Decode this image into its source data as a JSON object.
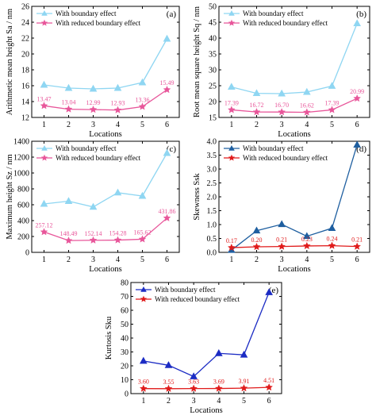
{
  "colors": {
    "with_boundary_light": "#8fd6f2",
    "with_boundary_dark": "#1f5fa0",
    "with_boundary_navy": "#1c2cc4",
    "reduced_pink": "#e8569a",
    "reduced_red": "#e01b1b"
  },
  "chart_data": [
    {
      "panel": "(a)",
      "type": "line",
      "xlabel": "Locations",
      "ylabel": "Arithmetic mean height Sa / nm",
      "x": [
        1,
        2,
        3,
        4,
        5,
        6
      ],
      "xlim": [
        0.5,
        6.5
      ],
      "ylim": [
        12,
        26
      ],
      "yticks": [
        12,
        14,
        16,
        18,
        20,
        22,
        24,
        26
      ],
      "legend_position": "top-left",
      "series": [
        {
          "name": "With boundary effect",
          "values": [
            16.1,
            15.7,
            15.6,
            15.7,
            16.4,
            21.9
          ],
          "color": "#8fd6f2",
          "marker": "triangle"
        },
        {
          "name": "With reduced boundary effect",
          "values": [
            13.47,
            13.04,
            12.99,
            12.93,
            13.36,
            15.49
          ],
          "color": "#e8569a",
          "marker": "star",
          "labels": [
            "13.47",
            "13.04",
            "12.99",
            "12.93",
            "13.36",
            "15.49"
          ]
        }
      ]
    },
    {
      "panel": "(b)",
      "type": "line",
      "xlabel": "Locations",
      "ylabel": "Root mean square height Sq / nm",
      "x": [
        1,
        2,
        3,
        4,
        5,
        6
      ],
      "xlim": [
        0.5,
        6.5
      ],
      "ylim": [
        15,
        50
      ],
      "yticks": [
        15,
        20,
        25,
        30,
        35,
        40,
        45,
        50
      ],
      "legend_position": "top-left",
      "series": [
        {
          "name": "With boundary effect",
          "values": [
            24.6,
            22.6,
            22.5,
            23.0,
            24.9,
            44.6
          ],
          "color": "#8fd6f2",
          "marker": "triangle"
        },
        {
          "name": "With reduced boundary effect",
          "values": [
            17.39,
            16.72,
            16.7,
            16.62,
            17.39,
            20.99
          ],
          "color": "#e8569a",
          "marker": "star",
          "labels": [
            "17.39",
            "16.72",
            "16.70",
            "16.62",
            "17.39",
            "20.99"
          ]
        }
      ]
    },
    {
      "panel": "(c)",
      "type": "line",
      "xlabel": "Locations",
      "ylabel": "Maximum height Sz / nm",
      "x": [
        1,
        2,
        3,
        4,
        5,
        6
      ],
      "xlim": [
        0.5,
        6.5
      ],
      "ylim": [
        0,
        1400
      ],
      "yticks": [
        0,
        200,
        400,
        600,
        800,
        1000,
        1200,
        1400
      ],
      "legend_position": "top-left",
      "series": [
        {
          "name": "With boundary effect",
          "values": [
            610,
            645,
            572,
            752,
            710,
            1250
          ],
          "color": "#8fd6f2",
          "marker": "triangle"
        },
        {
          "name": "With reduced boundary effect",
          "values": [
            257.12,
            148.49,
            152.14,
            154.28,
            165.62,
            431.86
          ],
          "color": "#e8569a",
          "marker": "star",
          "labels": [
            "257.12",
            "148.49",
            "152.14",
            "154.28",
            "165.62",
            "431.86"
          ]
        }
      ]
    },
    {
      "panel": "(d)",
      "type": "line",
      "xlabel": "Locations",
      "ylabel": "Skewness Ssk",
      "x": [
        1,
        2,
        3,
        4,
        5,
        6
      ],
      "xlim": [
        0.5,
        6.5
      ],
      "ylim": [
        0,
        4
      ],
      "yticks": [
        0,
        0.5,
        1.0,
        1.5,
        2.0,
        2.5,
        3.0,
        3.5,
        4.0
      ],
      "legend_position": "top-left",
      "series": [
        {
          "name": "With boundary effect",
          "values": [
            0.08,
            0.78,
            1.01,
            0.58,
            0.87,
            3.87
          ],
          "color": "#1f5fa0",
          "marker": "triangle"
        },
        {
          "name": "With reduced boundary effect",
          "values": [
            0.17,
            0.2,
            0.21,
            0.23,
            0.24,
            0.21
          ],
          "color": "#e01b1b",
          "marker": "star",
          "labels": [
            "0.17",
            "0.20",
            "0.21",
            "0.23",
            "0.24",
            "0.21"
          ]
        }
      ]
    },
    {
      "panel": "(e)",
      "type": "line",
      "xlabel": "Locations",
      "ylabel": "Kurtosis Sku",
      "x": [
        1,
        2,
        3,
        4,
        5,
        6
      ],
      "xlim": [
        0.5,
        6.5
      ],
      "ylim": [
        0,
        80
      ],
      "yticks": [
        0,
        10,
        20,
        30,
        40,
        50,
        60,
        70,
        80
      ],
      "legend_position": "top-left",
      "series": [
        {
          "name": "With boundary effect",
          "values": [
            23.5,
            20.4,
            12.3,
            29.0,
            27.9,
            72.9
          ],
          "color": "#1c2cc4",
          "marker": "triangle"
        },
        {
          "name": "With reduced boundary effect",
          "values": [
            3.6,
            3.55,
            3.63,
            3.69,
            3.91,
            4.51
          ],
          "color": "#e01b1b",
          "marker": "star",
          "labels": [
            "3.60",
            "3.55",
            "3.63",
            "3.69",
            "3.91",
            "4.51"
          ]
        }
      ]
    }
  ]
}
